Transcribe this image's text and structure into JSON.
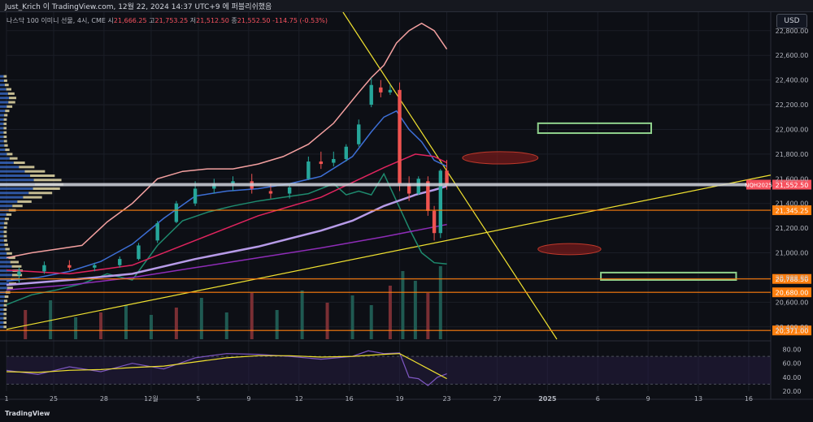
{
  "header": {
    "publish_line": "Just_Krich 이 TradingView.com, 12월 22, 2024 14:37 UTC+9 에 퍼블리쉬했음"
  },
  "toolbar": {
    "currency_label": "USD"
  },
  "legend": {
    "symbol": "나스닥 100 이미니 선물, 4시, CME",
    "open_label": "시",
    "open": "21,666.25",
    "high_label": "고",
    "high": "21,753.25",
    "low_label": "저",
    "low": "21,512.50",
    "close_label": "종",
    "close": "21,552.50",
    "change": "-114.75 (-0.53%)"
  },
  "branding": {
    "logo_text": "TradingView"
  },
  "colors": {
    "background": "#0d0f15",
    "up": "#26a69a",
    "down": "#ef5350",
    "trendline": "#f0e130",
    "level": "#ff7f0e",
    "last_price": "#f7525f",
    "box_green": "#8fd18c",
    "ellipse": "#8b1a1a"
  },
  "chart_data": [
    {
      "type": "line",
      "title": "",
      "xlabel": "",
      "ylabel": "",
      "y_axis_position": "right",
      "ylim": [
        20300,
        22950
      ],
      "y_ticks": [
        20400,
        20600,
        20800,
        21000,
        21200,
        21400,
        21600,
        21800,
        22000,
        22200,
        22400,
        22600,
        22800
      ],
      "y_tick_labels": [
        "20,400.00",
        "20,600.00",
        "20,800.00",
        "21,000.00",
        "21,200.00",
        "21,400.00",
        "21,600.00",
        "21,800.00",
        "22,000.00",
        "22,200.00",
        "22,400.00",
        "22,600.00",
        "22,800.00"
      ],
      "x_tick_labels": [
        "1",
        "25",
        "28",
        "12월",
        "5",
        "9",
        "12",
        "16",
        "19",
        "23",
        "27",
        "2025",
        "6",
        "9",
        "13",
        "16"
      ],
      "x_tick_index": [
        0,
        15,
        31,
        46,
        61,
        77,
        93,
        109,
        125,
        140,
        156,
        172,
        188,
        204,
        220,
        236
      ],
      "price_levels": [
        {
          "label": "21,345.25",
          "value": 21345.25,
          "color": "#ff7f0e"
        },
        {
          "label": "20,788.50",
          "value": 20788.5,
          "color": "#ff7f0e"
        },
        {
          "label": "20,680.00",
          "value": 20680.0,
          "color": "#ff7f0e"
        },
        {
          "label": "20,371.00",
          "value": 20371.0,
          "color": "#ff7f0e"
        }
      ],
      "last_price": {
        "symbol_tag": "NQH2025",
        "label": "21,552.50",
        "value": 21552.5
      },
      "series": [
        {
          "role": "upper_band",
          "color": "#f4a0a0",
          "x": [
            0,
            8,
            16,
            24,
            32,
            40,
            48,
            56,
            64,
            72,
            80,
            88,
            96,
            104,
            112,
            116,
            120,
            124,
            128,
            132,
            136,
            140
          ],
          "y": [
            20960,
            21000,
            21030,
            21060,
            21250,
            21400,
            21600,
            21660,
            21680,
            21680,
            21720,
            21780,
            21880,
            22050,
            22300,
            22420,
            22520,
            22700,
            22800,
            22860,
            22800,
            22650
          ]
        },
        {
          "role": "lower_band",
          "color": "#1e8a6e",
          "x": [
            0,
            8,
            16,
            24,
            32,
            40,
            48,
            56,
            64,
            72,
            80,
            88,
            96,
            104,
            108,
            112,
            116,
            120,
            124,
            128,
            132,
            136,
            140
          ],
          "y": [
            20580,
            20660,
            20700,
            20750,
            20830,
            20780,
            21060,
            21260,
            21330,
            21380,
            21420,
            21450,
            21480,
            21560,
            21470,
            21500,
            21470,
            21640,
            21420,
            21200,
            21000,
            20920,
            20910
          ]
        },
        {
          "role": "ma_blue",
          "color": "#3d6fd6",
          "x": [
            0,
            10,
            20,
            30,
            40,
            50,
            60,
            70,
            80,
            90,
            100,
            110,
            116,
            120,
            124,
            128,
            132,
            136,
            140
          ],
          "y": [
            20770,
            20800,
            20850,
            20930,
            21070,
            21280,
            21460,
            21500,
            21520,
            21560,
            21620,
            21780,
            21980,
            22100,
            22150,
            22000,
            21900,
            21750,
            21700
          ]
        },
        {
          "role": "ma_red",
          "color": "#e0245e",
          "x": [
            0,
            20,
            40,
            60,
            80,
            100,
            120,
            130,
            136,
            140
          ],
          "y": [
            20860,
            20830,
            20900,
            21100,
            21300,
            21450,
            21690,
            21800,
            21780,
            21730
          ]
        },
        {
          "role": "ma_lavender",
          "color": "#b79be8",
          "x": [
            0,
            20,
            40,
            60,
            80,
            100,
            110,
            120,
            130,
            136,
            140
          ],
          "y": [
            20740,
            20780,
            20830,
            20950,
            21050,
            21180,
            21260,
            21380,
            21470,
            21510,
            21540
          ]
        },
        {
          "role": "ma_purple",
          "color": "#8e2cb7",
          "x": [
            0,
            20,
            40,
            60,
            80,
            100,
            120,
            130,
            140
          ],
          "y": [
            20700,
            20740,
            20800,
            20880,
            20960,
            21040,
            21130,
            21180,
            21230
          ]
        }
      ],
      "candles": [
        {
          "i": 4,
          "o": 20820,
          "h": 20880,
          "l": 20760,
          "c": 20850
        },
        {
          "i": 12,
          "o": 20850,
          "h": 20930,
          "l": 20830,
          "c": 20900
        },
        {
          "i": 20,
          "o": 20900,
          "h": 20940,
          "l": 20860,
          "c": 20880
        },
        {
          "i": 28,
          "o": 20880,
          "h": 20920,
          "l": 20850,
          "c": 20900
        },
        {
          "i": 36,
          "o": 20900,
          "h": 20970,
          "l": 20880,
          "c": 20950
        },
        {
          "i": 42,
          "o": 20950,
          "h": 21080,
          "l": 20940,
          "c": 21060
        },
        {
          "i": 48,
          "o": 21100,
          "h": 21260,
          "l": 21080,
          "c": 21240
        },
        {
          "i": 54,
          "o": 21250,
          "h": 21420,
          "l": 21240,
          "c": 21400
        },
        {
          "i": 60,
          "o": 21400,
          "h": 21580,
          "l": 21380,
          "c": 21520
        },
        {
          "i": 66,
          "o": 21520,
          "h": 21600,
          "l": 21480,
          "c": 21560
        },
        {
          "i": 72,
          "o": 21560,
          "h": 21620,
          "l": 21500,
          "c": 21580
        },
        {
          "i": 78,
          "o": 21580,
          "h": 21640,
          "l": 21480,
          "c": 21520
        },
        {
          "i": 84,
          "o": 21500,
          "h": 21560,
          "l": 21440,
          "c": 21480
        },
        {
          "i": 90,
          "o": 21480,
          "h": 21560,
          "l": 21440,
          "c": 21530
        },
        {
          "i": 96,
          "o": 21600,
          "h": 21780,
          "l": 21590,
          "c": 21740
        },
        {
          "i": 100,
          "o": 21740,
          "h": 21820,
          "l": 21680,
          "c": 21720
        },
        {
          "i": 104,
          "o": 21730,
          "h": 21820,
          "l": 21700,
          "c": 21760
        },
        {
          "i": 108,
          "o": 21760,
          "h": 21880,
          "l": 21740,
          "c": 21860
        },
        {
          "i": 112,
          "o": 21880,
          "h": 22080,
          "l": 21860,
          "c": 22040
        },
        {
          "i": 116,
          "o": 22200,
          "h": 22420,
          "l": 22180,
          "c": 22360
        },
        {
          "i": 119,
          "o": 22340,
          "h": 22400,
          "l": 22260,
          "c": 22300
        },
        {
          "i": 122,
          "o": 22300,
          "h": 22360,
          "l": 22280,
          "c": 22320
        },
        {
          "i": 125,
          "o": 22320,
          "h": 22380,
          "l": 21500,
          "c": 21560
        },
        {
          "i": 128,
          "o": 21560,
          "h": 21620,
          "l": 21420,
          "c": 21480
        },
        {
          "i": 131,
          "o": 21480,
          "h": 21620,
          "l": 21470,
          "c": 21600
        },
        {
          "i": 134,
          "o": 21580,
          "h": 21620,
          "l": 21300,
          "c": 21340
        },
        {
          "i": 136,
          "o": 21340,
          "h": 21380,
          "l": 21100,
          "c": 21160
        },
        {
          "i": 138,
          "o": 21160,
          "h": 21680,
          "l": 21120,
          "c": 21666
        },
        {
          "i": 140,
          "o": 21666,
          "h": 21753,
          "l": 21512,
          "c": 21552
        }
      ],
      "volume": [
        {
          "i": 6,
          "v": 60
        },
        {
          "i": 14,
          "v": 80
        },
        {
          "i": 22,
          "v": 45
        },
        {
          "i": 30,
          "v": 55
        },
        {
          "i": 38,
          "v": 70
        },
        {
          "i": 46,
          "v": 50
        },
        {
          "i": 54,
          "v": 65
        },
        {
          "i": 62,
          "v": 85
        },
        {
          "i": 70,
          "v": 55
        },
        {
          "i": 78,
          "v": 95
        },
        {
          "i": 86,
          "v": 60
        },
        {
          "i": 94,
          "v": 100
        },
        {
          "i": 102,
          "v": 75
        },
        {
          "i": 110,
          "v": 90
        },
        {
          "i": 116,
          "v": 70
        },
        {
          "i": 122,
          "v": 110
        },
        {
          "i": 126,
          "v": 140
        },
        {
          "i": 130,
          "v": 120
        },
        {
          "i": 134,
          "v": 95
        },
        {
          "i": 138,
          "v": 150
        }
      ],
      "annotations": {
        "descending_trendline": {
          "x": [
            107,
            175
          ],
          "y": [
            22950,
            20300
          ],
          "color": "#f0e130"
        },
        "ascending_trendline": {
          "x": [
            0,
            243
          ],
          "y": [
            20380,
            21630
          ],
          "color": "#f0e130"
        },
        "resistance_box_1": {
          "x": [
            169,
            205
          ],
          "y": [
            22050,
            21970
          ],
          "color": "#8fd18c"
        },
        "resistance_box_2": {
          "x": [
            189,
            232
          ],
          "y": [
            20840,
            20780
          ],
          "color": "#8fd18c"
        },
        "ellipse_1": {
          "cx": 157,
          "cy": 21770,
          "rx": 12,
          "ry": 50
        },
        "ellipse_2": {
          "cx": 179,
          "cy": 21030,
          "rx": 10,
          "ry": 45
        }
      }
    },
    {
      "type": "line",
      "title": "",
      "xlabel": "",
      "ylabel": "",
      "ylim": [
        20,
        90
      ],
      "y_ticks": [
        20,
        40,
        60,
        80
      ],
      "y_tick_labels": [
        "20.00",
        "40.00",
        "60.00",
        "80.00"
      ],
      "upper_band": 70,
      "lower_band": 30,
      "series": [
        {
          "role": "oscillator",
          "color": "#7e57c2",
          "x": [
            0,
            10,
            20,
            30,
            40,
            50,
            60,
            70,
            80,
            90,
            100,
            110,
            115,
            120,
            125,
            128,
            131,
            134,
            137,
            140
          ],
          "y": [
            50,
            44,
            55,
            48,
            60,
            52,
            68,
            74,
            73,
            70,
            66,
            70,
            78,
            74,
            75,
            40,
            38,
            28,
            40,
            45
          ]
        },
        {
          "role": "signal",
          "color": "#f0e130",
          "x": [
            0,
            10,
            20,
            30,
            40,
            50,
            60,
            70,
            80,
            90,
            100,
            110,
            120,
            125,
            130,
            135,
            140
          ],
          "y": [
            48,
            47,
            50,
            51,
            54,
            56,
            62,
            68,
            71,
            71,
            69,
            70,
            73,
            74,
            62,
            50,
            38
          ]
        }
      ]
    }
  ]
}
